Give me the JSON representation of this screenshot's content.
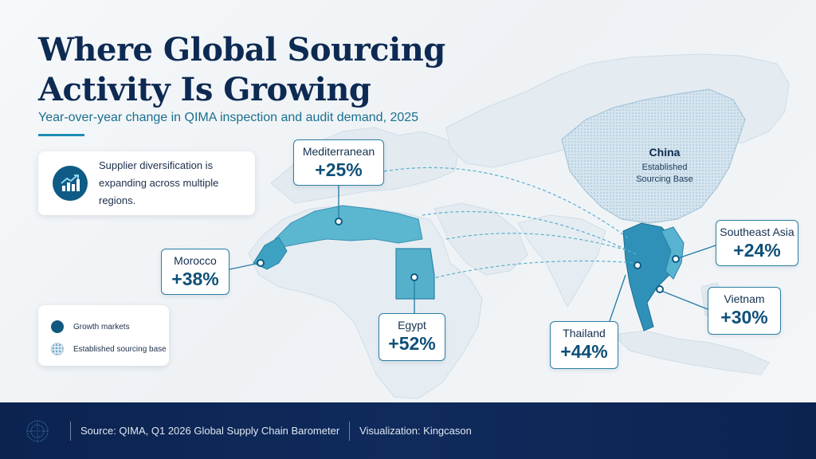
{
  "title": "Where Global Sourcing Activity Is Growing",
  "subtitle": "Year-over-year change in QIMA inspection and audit demand, 2025",
  "info_card": {
    "icon": "trend-chart-icon",
    "text": "Supplier diversification is expanding across multiple regions."
  },
  "legend": {
    "growth": "Growth markets",
    "base": "Established sourcing base"
  },
  "regions": {
    "mediterranean": {
      "name": "Mediterranean",
      "change": "+25%"
    },
    "morocco": {
      "name": "Morocco",
      "change": "+38%"
    },
    "egypt": {
      "name": "Egypt",
      "change": "+52%"
    },
    "thailand": {
      "name": "Thailand",
      "change": "+44%"
    },
    "vietnam": {
      "name": "Vietnam",
      "change": "+30%"
    },
    "southeast_asia": {
      "name": "Southeast Asia",
      "change": "+24%"
    },
    "china": {
      "name": "China",
      "note_line1": "Established",
      "note_line2": "Sourcing Base"
    }
  },
  "footer": {
    "source": "Source: QIMA, Q1 2026 Global Supply Chain Barometer",
    "credit": "Visualization: Kingcason"
  },
  "colors": {
    "growth": "#11587e",
    "highlight": "#4cb3cf",
    "base": "#dbe8f1",
    "navy": "#0d2a52"
  }
}
